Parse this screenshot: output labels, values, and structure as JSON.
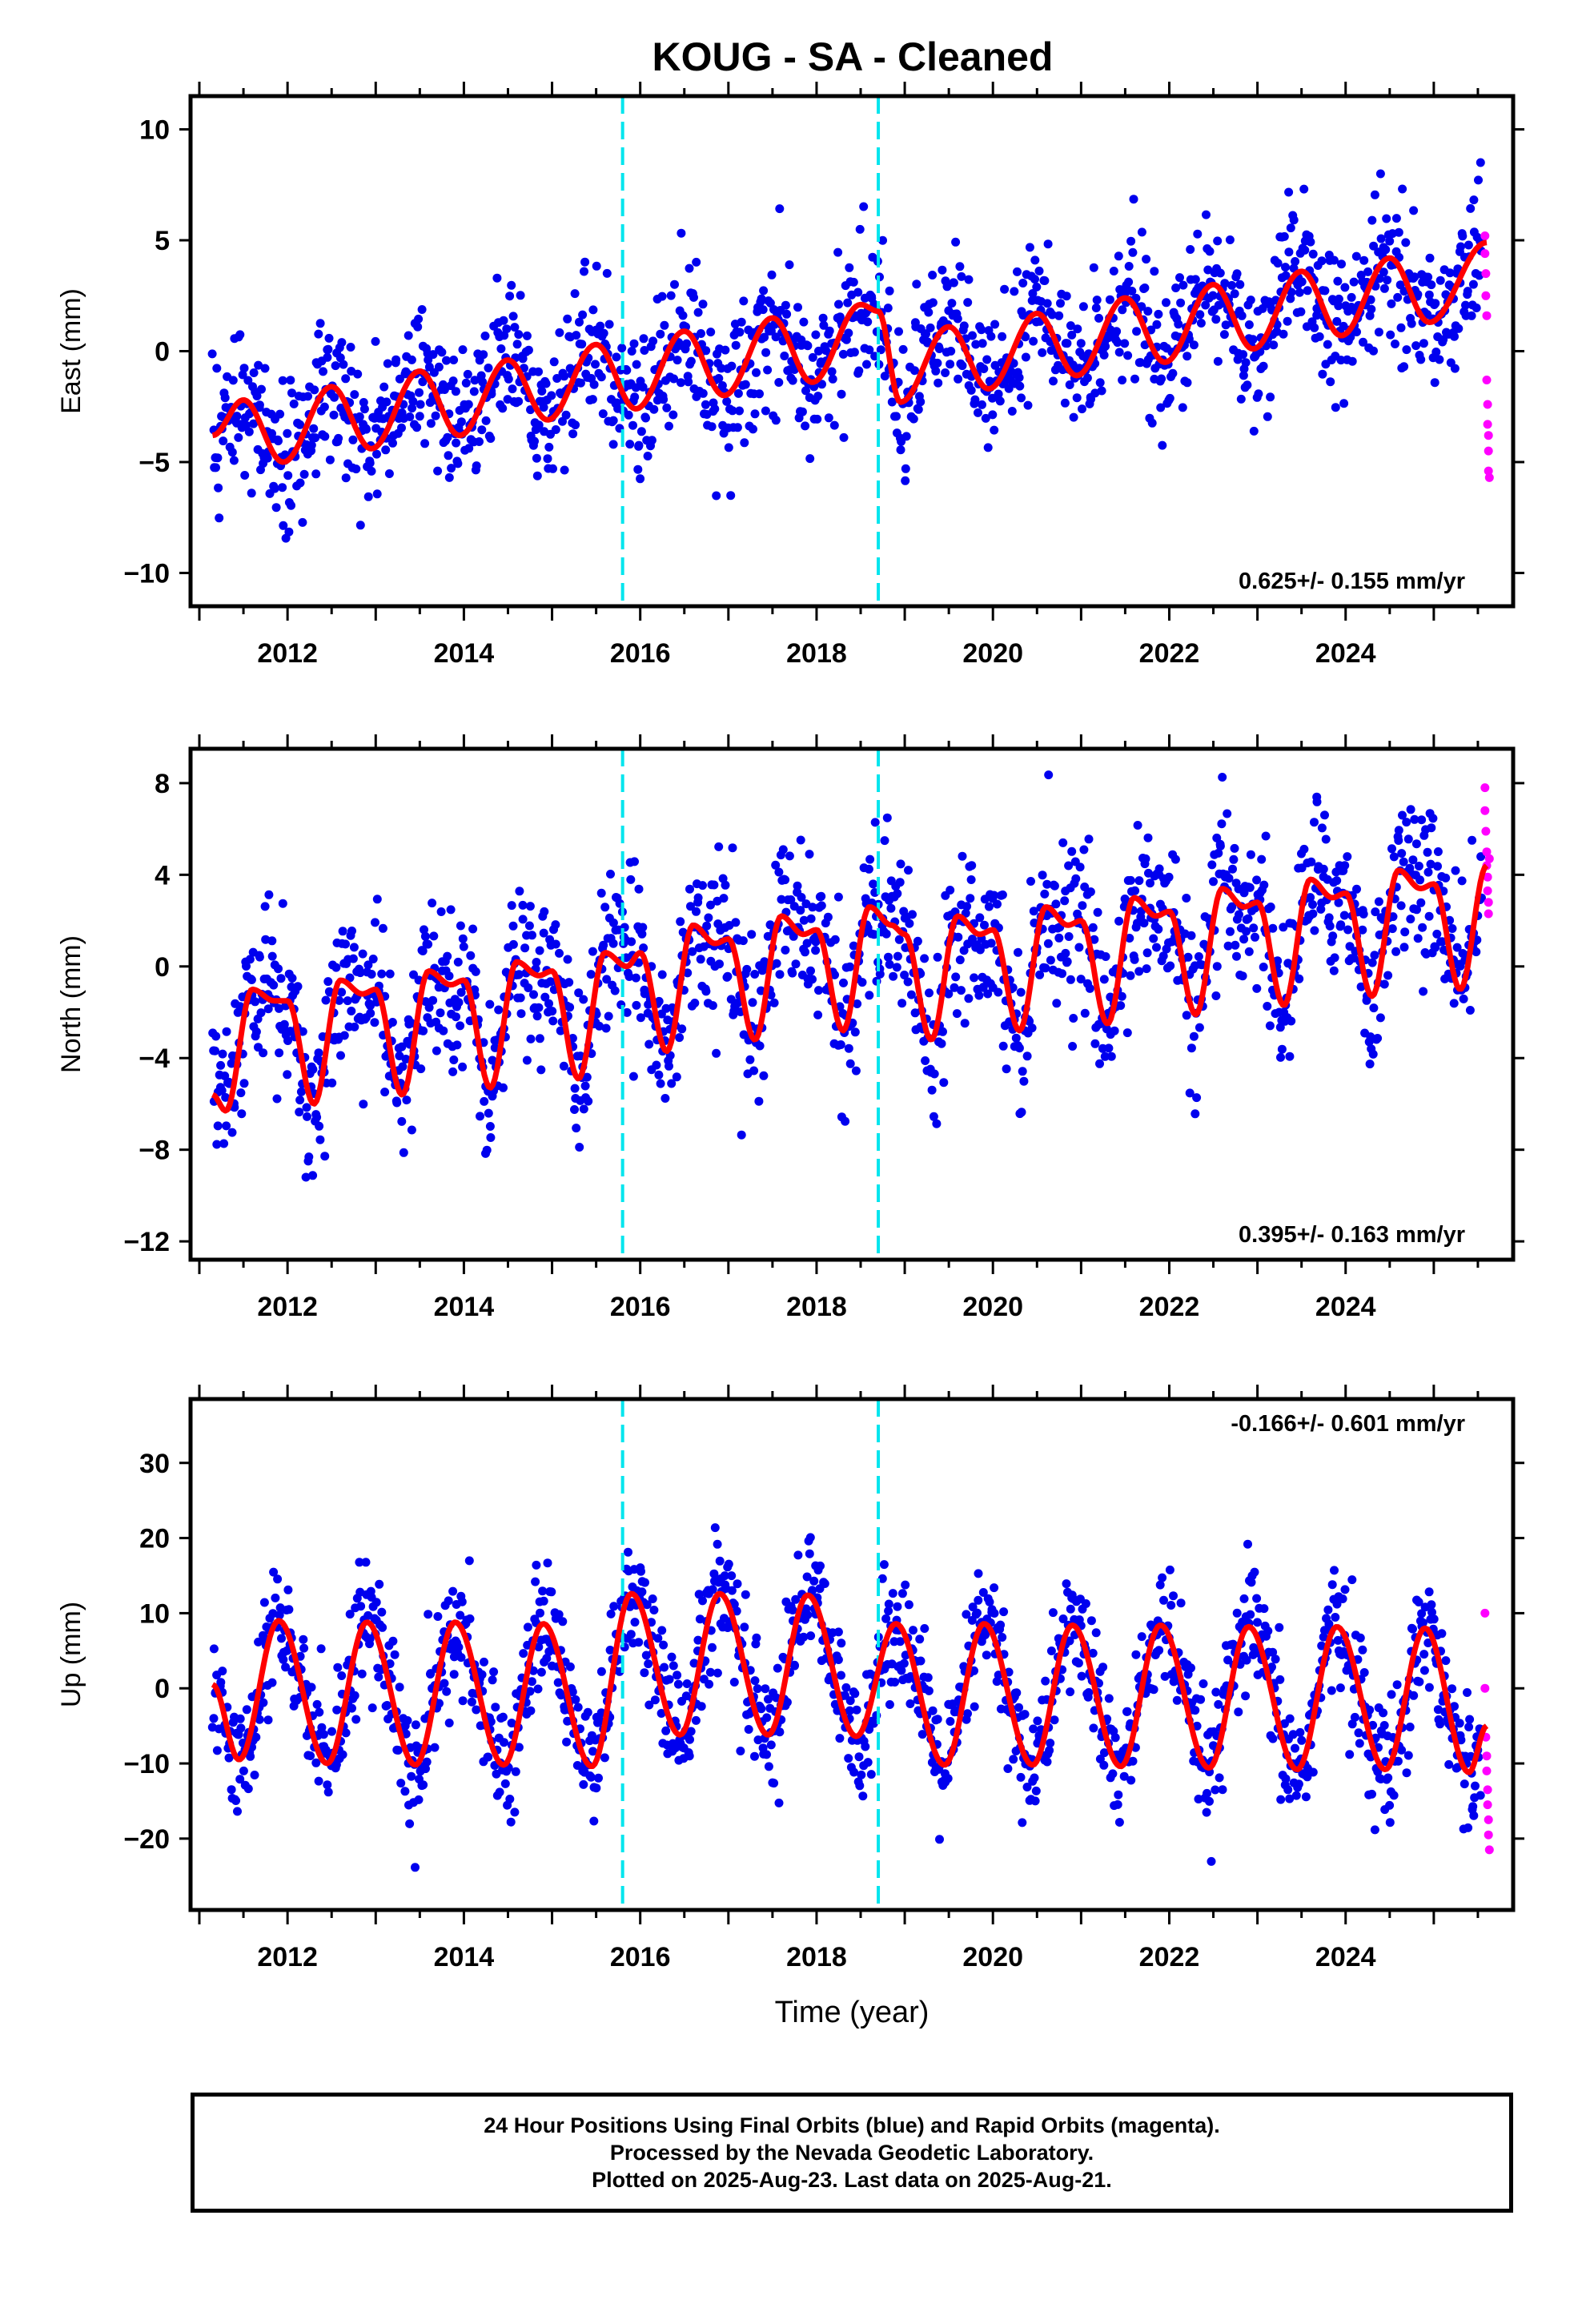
{
  "title": "KOUG  - SA - Cleaned",
  "footer": {
    "line1": "24 Hour Positions Using Final Orbits (blue) and Rapid Orbits (magenta).",
    "line2": "Processed by the Nevada Geodetic Laboratory.",
    "line3": "Plotted on 2025-Aug-23. Last data on 2025-Aug-21."
  },
  "colors": {
    "final": "#0000ee",
    "rapid": "#ff00ff",
    "model": "#ff0000",
    "breaks": "#00e5ee"
  },
  "chart_data": [
    {
      "type": "scatter",
      "panel": "east",
      "ylabel": "East (mm)",
      "xlabel": "",
      "xlim": [
        2010.9,
        2025.9
      ],
      "ylim": [
        -11.5,
        11.5
      ],
      "yticks": [
        -10,
        -5,
        0,
        5,
        10
      ],
      "xticks": [
        2012,
        2014,
        2016,
        2018,
        2020,
        2022,
        2024
      ],
      "trend_label": "0.625+/- 0.155 mm/yr",
      "trend_position": "bottom-right",
      "offsets": [
        2015.8,
        2018.7
      ],
      "model": {
        "x": [
          2011.15,
          2011.5,
          2011.95,
          2012.5,
          2012.95,
          2013.5,
          2013.95,
          2014.5,
          2014.95,
          2015.5,
          2015.95,
          2016.5,
          2016.95,
          2017.5,
          2017.95,
          2018.5,
          2018.7,
          2018.95,
          2019.5,
          2019.95,
          2020.5,
          2020.95,
          2021.5,
          2021.95,
          2022.5,
          2022.95,
          2023.5,
          2023.95,
          2024.5,
          2024.95,
          2025.6
        ],
        "y": [
          -3.8,
          -2.2,
          -5.0,
          -1.6,
          -4.4,
          -0.9,
          -3.8,
          -0.4,
          -3.1,
          0.3,
          -2.6,
          0.9,
          -2.0,
          1.5,
          -1.4,
          2.1,
          1.8,
          -2.3,
          1.1,
          -1.7,
          1.7,
          -1.1,
          2.4,
          -0.5,
          3.0,
          0.1,
          3.6,
          0.7,
          4.2,
          1.3,
          4.9
        ]
      },
      "series": [
        {
          "name": "Final Orbits",
          "color": "#0000ee",
          "x_range": [
            2011.15,
            2025.55
          ],
          "spread": 1.6
        },
        {
          "name": "Rapid Orbits",
          "color": "#ff00ff",
          "x": [
            2025.58,
            2025.58,
            2025.59,
            2025.59,
            2025.6,
            2025.6,
            2025.61,
            2025.61,
            2025.62,
            2025.62,
            2025.62,
            2025.63
          ],
          "y": [
            5.2,
            4.4,
            3.5,
            2.5,
            1.6,
            -1.3,
            -2.4,
            -3.3,
            -3.8,
            -4.5,
            -5.4,
            -5.7
          ]
        }
      ]
    },
    {
      "type": "scatter",
      "panel": "north",
      "ylabel": "North (mm)",
      "xlabel": "",
      "xlim": [
        2010.9,
        2025.9
      ],
      "ylim": [
        -12.8,
        9.5
      ],
      "yticks": [
        -12,
        -8,
        -4,
        0,
        4,
        8
      ],
      "xticks": [
        2012,
        2014,
        2016,
        2018,
        2020,
        2022,
        2024
      ],
      "trend_label": "0.395+/- 0.163 mm/yr",
      "trend_position": "bottom-right",
      "offsets": [
        2015.8,
        2018.7
      ],
      "model": {
        "x": [
          2011.15,
          2011.3,
          2011.6,
          2011.85,
          2012.0,
          2012.3,
          2012.6,
          2012.85,
          2013.0,
          2013.3,
          2013.6,
          2013.85,
          2014.0,
          2014.3,
          2014.6,
          2014.85,
          2015.0,
          2015.3,
          2015.6,
          2015.85,
          2016.0,
          2016.3,
          2016.6,
          2016.85,
          2017.0,
          2017.3,
          2017.6,
          2017.85,
          2018.0,
          2018.3,
          2018.6,
          2018.85,
          2019.0,
          2019.3,
          2019.6,
          2019.85,
          2020.0,
          2020.3,
          2020.6,
          2020.85,
          2021.0,
          2021.3,
          2021.6,
          2021.85,
          2022.0,
          2022.3,
          2022.6,
          2022.85,
          2023.0,
          2023.3,
          2023.6,
          2023.85,
          2024.0,
          2024.3,
          2024.6,
          2024.85,
          2025.0,
          2025.3,
          2025.6
        ],
        "y": [
          -5.6,
          -6.3,
          -1.0,
          -1.5,
          -1.5,
          -6.0,
          -0.6,
          -1.2,
          -1.0,
          -5.6,
          -0.2,
          -0.8,
          -0.6,
          -5.3,
          0.2,
          -0.4,
          -0.2,
          -4.9,
          0.6,
          0.0,
          0.6,
          -3.7,
          1.8,
          1.0,
          1.2,
          -3.2,
          2.2,
          1.4,
          1.6,
          -2.8,
          2.6,
          1.8,
          1.4,
          -3.2,
          2.2,
          1.4,
          1.6,
          -2.8,
          2.6,
          1.8,
          2.0,
          -2.5,
          3.0,
          2.2,
          2.4,
          -2.1,
          3.4,
          2.6,
          2.8,
          -1.7,
          3.8,
          3.0,
          3.2,
          -1.3,
          4.2,
          3.4,
          3.6,
          -1.0,
          4.4
        ]
      },
      "series": [
        {
          "name": "Final Orbits",
          "color": "#0000ee",
          "x_range": [
            2011.15,
            2025.55
          ],
          "spread": 1.7
        },
        {
          "name": "Rapid Orbits",
          "color": "#ff00ff",
          "x": [
            2025.58,
            2025.58,
            2025.59,
            2025.6,
            2025.6,
            2025.61,
            2025.61,
            2025.62,
            2025.62,
            2025.63
          ],
          "y": [
            7.8,
            6.8,
            5.9,
            5.0,
            4.4,
            3.9,
            3.3,
            2.8,
            2.3,
            4.7
          ]
        }
      ]
    },
    {
      "type": "scatter",
      "panel": "up",
      "ylabel": "Up (mm)",
      "xlabel": "Time (year)",
      "xlim": [
        2010.9,
        2025.9
      ],
      "ylim": [
        -29.5,
        38.5
      ],
      "yticks": [
        -20,
        -10,
        0,
        10,
        20,
        30
      ],
      "xticks": [
        2012,
        2014,
        2016,
        2018,
        2020,
        2022,
        2024
      ],
      "trend_label": "-0.166+/- 0.601 mm/yr",
      "trend_position": "top-right",
      "offsets": [
        2015.8,
        2018.7
      ],
      "model": {
        "x": [
          2011.15,
          2011.45,
          2011.9,
          2012.45,
          2012.9,
          2013.45,
          2013.9,
          2014.45,
          2014.9,
          2015.45,
          2015.9,
          2016.45,
          2016.9,
          2017.45,
          2017.9,
          2018.45,
          2018.9,
          2019.45,
          2019.9,
          2020.45,
          2020.9,
          2021.45,
          2021.9,
          2022.45,
          2022.9,
          2023.45,
          2023.9,
          2024.45,
          2024.9,
          2025.4,
          2025.6
        ],
        "y": [
          0.5,
          -9.5,
          9.0,
          -10.0,
          8.8,
          -10.2,
          8.8,
          -10.2,
          8.6,
          -10.4,
          12.6,
          -6.2,
          12.6,
          -6.2,
          12.4,
          -6.4,
          8.6,
          -10.2,
          8.6,
          -10.2,
          8.4,
          -10.4,
          8.4,
          -10.6,
          8.2,
          -10.8,
          8.2,
          -10.8,
          8.0,
          -11.2,
          -5.0
        ]
      },
      "series": [
        {
          "name": "Final Orbits",
          "color": "#0000ee",
          "x_range": [
            2011.15,
            2025.55
          ],
          "spread": 4.2
        },
        {
          "name": "Rapid Orbits",
          "color": "#ff00ff",
          "x": [
            2025.58,
            2025.58,
            2025.59,
            2025.6,
            2025.6,
            2025.61,
            2025.61,
            2025.62,
            2025.62,
            2025.63
          ],
          "y": [
            10.0,
            0.0,
            -6.5,
            -9.0,
            -11.0,
            -13.5,
            -15.5,
            -17.5,
            -19.5,
            -21.5
          ]
        }
      ]
    }
  ]
}
